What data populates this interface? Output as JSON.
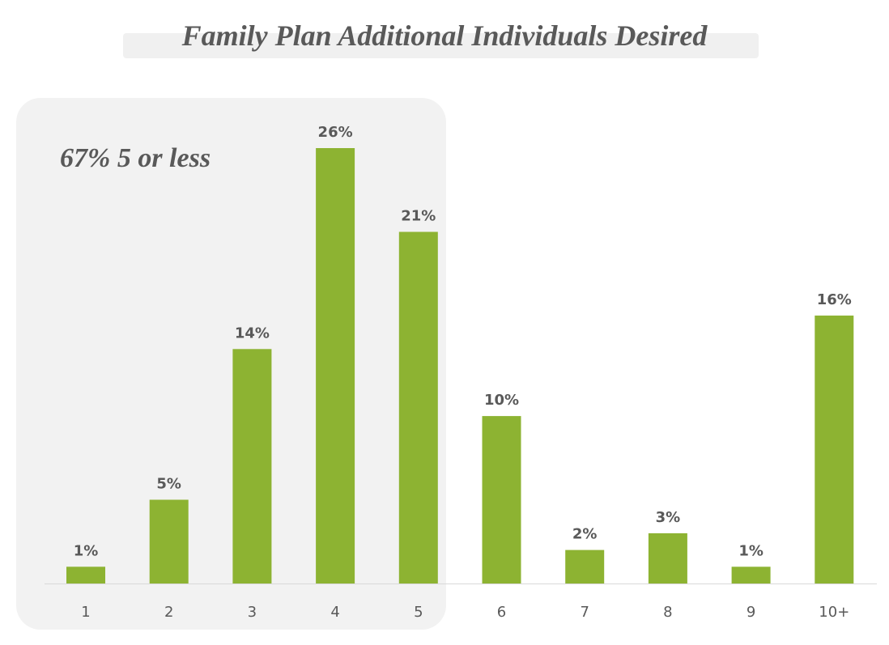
{
  "chart_data": {
    "type": "bar",
    "title": "Family Plan Additional Individuals Desired",
    "categories": [
      "1",
      "2",
      "3",
      "4",
      "5",
      "6",
      "7",
      "8",
      "9",
      "10+"
    ],
    "values": [
      1,
      5,
      14,
      26,
      21,
      10,
      2,
      3,
      1,
      16
    ],
    "data_labels": [
      "1%",
      "5%",
      "14%",
      "26%",
      "21%",
      "10%",
      "2%",
      "3%",
      "1%",
      "16%"
    ],
    "value_unit": "%",
    "xlabel": "",
    "ylabel": "",
    "ylim": [
      0,
      26
    ],
    "grid": false,
    "legend": "none",
    "bar_color": "#8db332",
    "highlight": {
      "categories": [
        "1",
        "2",
        "3",
        "4",
        "5"
      ],
      "annotation": "67% 5 or less",
      "background_color": "#f2f2f2"
    }
  }
}
